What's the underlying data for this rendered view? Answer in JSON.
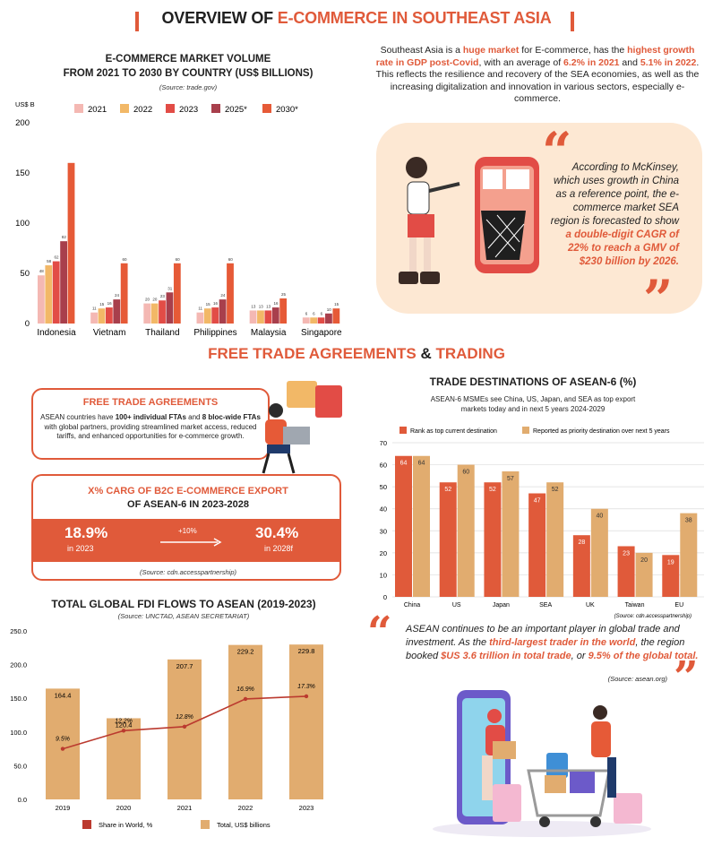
{
  "header": {
    "title_part1": "OVERVIEW OF ",
    "title_part2": "E-COMMERCE IN SOUTHEAST ASIA"
  },
  "market_chart": {
    "title_line1": "E-COMMERCE MARKET VOLUME",
    "title_line2": "FROM 2021 TO 2030 BY COUNTRY (US$ BILLIONS)",
    "source": "(Source: trade.gov)",
    "y_unit": "US$ B"
  },
  "intro": {
    "t1": "Southeast Asia is a ",
    "h1": "huge market",
    "t2": " for E-commerce, has the ",
    "h2": "highest growth rate in GDP post-Covid",
    "t3": ", with an average of ",
    "h3": "6.2% in 2021",
    "t4": " and ",
    "h4": "5.1% in 2022",
    "t5": ". This reflects the resilience and recovery of the SEA economies, as well as the increasing digitalization and innovation in various sectors, especially e-commerce."
  },
  "mckinsey": {
    "text": "According to McKinsey, which uses growth in China as a reference point, the e-commerce market SEA region is forecasted to show ",
    "highlight": "a double-digit CAGR of 22% to reach a GMV of $230 billion by 2026."
  },
  "section2": {
    "title_part1": "FREE  TRADE AGREEMENTS ",
    "amp": "&",
    "title_part2": " TRADING"
  },
  "fta": {
    "title": "FREE TRADE AGREEMENTS",
    "t1": "ASEAN countries have ",
    "b1": "100+ individual FTAs",
    "t2": " and ",
    "b2": "8 bloc-wide FTAs",
    "t3": " with global partners, providing streamlined market access, reduced tariffs, and enhanced opportunities for e-commerce growth."
  },
  "cagr": {
    "title_line1": "X% CARG OF B2C E-COMMERCE EXPORT",
    "title_line2": "OF ASEAN-6 IN  2023-2028",
    "left_value": "18.9%",
    "left_sub": "in 2023",
    "right_value": "30.4%",
    "right_sub": "in 2028f",
    "arrow_label": "+10%",
    "source": "(Source: cdn.accesspartnership)"
  },
  "fdi_chart_meta": {
    "title": "TOTAL GLOBAL FDI FLOWS TO ASEAN (2019-2023)",
    "source": "(Source: UNCTAD, ASEAN SECRETARIAT)"
  },
  "trade_chart_meta": {
    "title": "TRADE DESTINATIONS OF ASEAN-6 (%)",
    "subtitle_line1": "ASEAN-6 MSMEs see China, US, Japan, and SEA as top export",
    "subtitle_line2": "markets today and in next 5 years 2024-2029",
    "source": "(Source: cdn.accesspartnership)"
  },
  "asean_quote": {
    "t1": "ASEAN continues to be an important player in global trade and investment. As the ",
    "h1": "third-largest trader in the world",
    "t2": ", the region booked ",
    "h2": "$US 3.6 trillion in total trade",
    "t3": ", or ",
    "h3": "9.5% of the global total.",
    "source": "(Source: asean.org)"
  },
  "colors": {
    "accent": "#e05a3a",
    "c2021": "#f4b8b3",
    "c2022": "#f2b867",
    "c2023": "#e24c46",
    "c2025": "#a83f4c",
    "c2030": "#e65a37",
    "tan": "#e1ac6f",
    "line": "#bb3a2f",
    "peach": "#fde8d3"
  },
  "chart_data": [
    {
      "type": "bar",
      "title": "E-COMMERCE MARKET VOLUME FROM 2021 TO 2030 BY COUNTRY (US$ BILLIONS)",
      "ylabel": "US$ B",
      "ylim": [
        0,
        200
      ],
      "yticks": [
        0,
        50,
        100,
        150,
        200
      ],
      "categories": [
        "Indonesia",
        "Vietnam",
        "Thailand",
        "Philippines",
        "Malaysia",
        "Singapore"
      ],
      "series": [
        {
          "name": "2021",
          "values": [
            48,
            11,
            20,
            11,
            13,
            6
          ]
        },
        {
          "name": "2022",
          "values": [
            58,
            15,
            20,
            15,
            13,
            6
          ]
        },
        {
          "name": "2023",
          "values": [
            62,
            16,
            23,
            16,
            13,
            6
          ]
        },
        {
          "name": "2025*",
          "values": [
            82,
            24,
            31,
            24,
            16,
            10
          ]
        },
        {
          "name": "2030*",
          "values": [
            160,
            60,
            60,
            60,
            25,
            15
          ]
        }
      ],
      "data_labels": [
        [
          "48",
          "11",
          "20",
          "11",
          "13",
          "6"
        ],
        [
          "58",
          "15",
          "20",
          "15",
          "13",
          "6"
        ],
        [
          "62",
          "16",
          "23",
          "16",
          "13",
          "6"
        ],
        [
          "82",
          "24",
          "31",
          "24",
          "16",
          "10"
        ],
        [
          "",
          "60",
          "60",
          "60",
          "25",
          "15"
        ]
      ],
      "legend": "top"
    },
    {
      "type": "bar",
      "title": "TRADE DESTINATIONS OF ASEAN-6 (%)",
      "ylim": [
        0,
        70
      ],
      "yticks": [
        0,
        10,
        20,
        30,
        40,
        50,
        60,
        70
      ],
      "categories": [
        "China",
        "US",
        "Japan",
        "SEA",
        "UK",
        "Taiwan",
        "EU"
      ],
      "series": [
        {
          "name": "Rank as top current destination",
          "values": [
            64,
            52,
            52,
            47,
            28,
            23,
            19
          ]
        },
        {
          "name": "Reported as priority destination over next 5 years",
          "values": [
            64,
            60,
            57,
            52,
            40,
            20,
            38
          ]
        }
      ],
      "legend": "top",
      "grid": true
    },
    {
      "type": "bar",
      "title": "TOTAL GLOBAL FDI FLOWS TO ASEAN (2019-2023)",
      "categories": [
        "2019",
        "2020",
        "2021",
        "2022",
        "2023"
      ],
      "ylim": [
        0,
        250
      ],
      "yticks": [
        "0.0",
        "50.0",
        "100.0",
        "150.0",
        "200.0",
        "250.0"
      ],
      "series": [
        {
          "name": "Total, US$ billions",
          "type": "bar",
          "values": [
            164.4,
            120.4,
            207.7,
            229.2,
            229.8
          ],
          "labels": [
            "164.4",
            "120.4",
            "207.7",
            "229.2",
            "229.8"
          ]
        },
        {
          "name": "Share in World, %",
          "type": "line",
          "values": [
            9.5,
            12.2,
            12.8,
            16.9,
            17.3
          ],
          "labels": [
            "9.5%",
            "12.2%",
            "12.8%",
            "16.9%",
            "17.3%"
          ]
        }
      ],
      "legend": "bottom"
    }
  ]
}
